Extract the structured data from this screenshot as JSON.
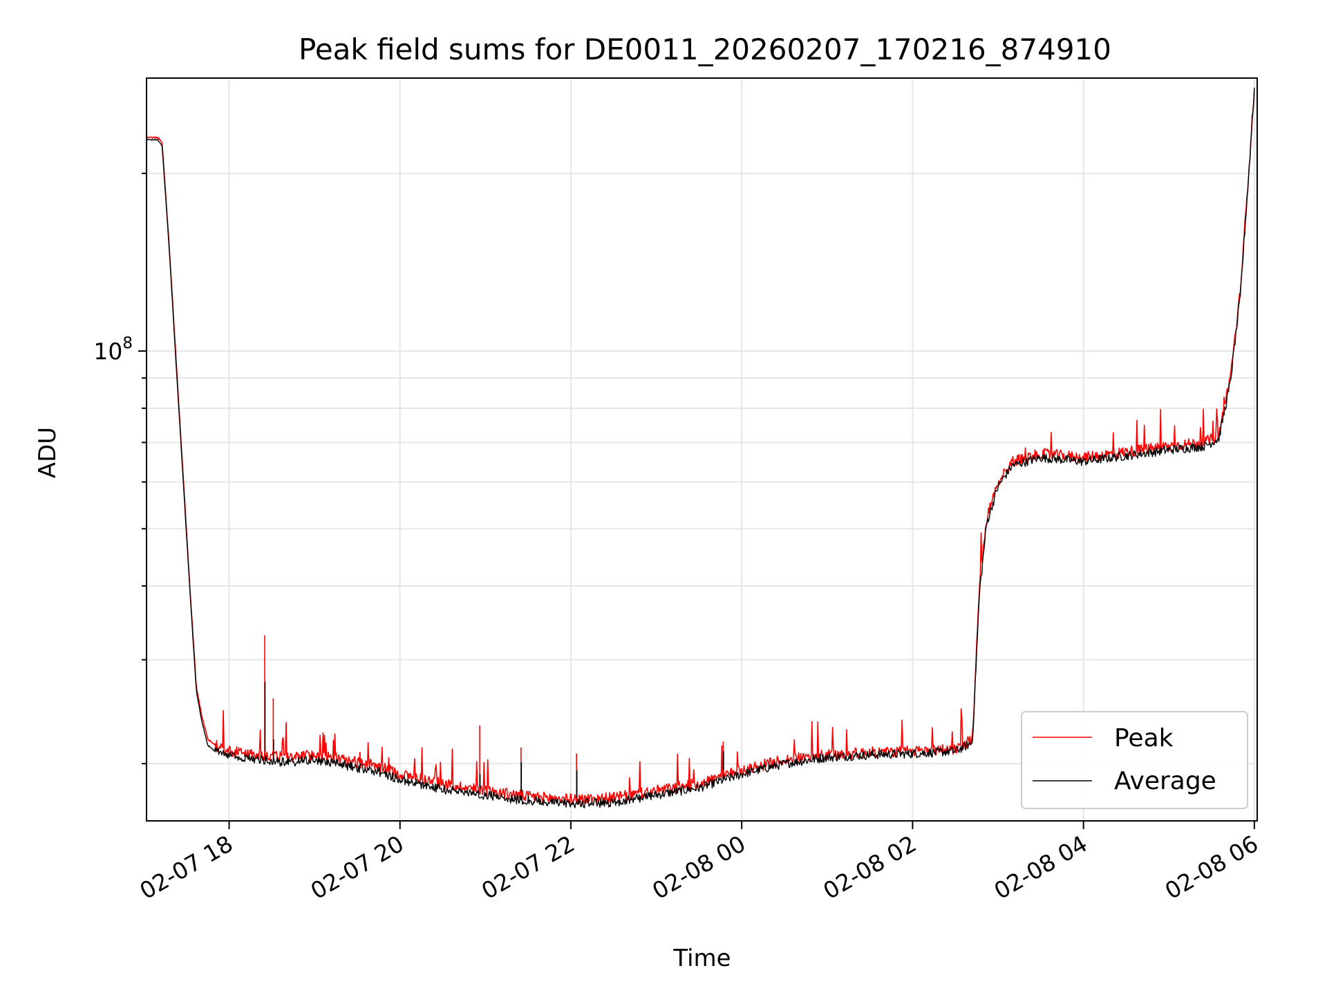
{
  "chart_data": {
    "type": "line",
    "title": "Peak field sums for DE0011_20260207_170216_874910",
    "xlabel": "Time",
    "ylabel": "ADU",
    "yscale": "log",
    "xlim": [
      "2026-02-07 17:02",
      "2026-02-08 06:02"
    ],
    "ylim": [
      16000000,
      290000000
    ],
    "x_ticks": [
      "02-07 18",
      "02-07 20",
      "02-07 22",
      "02-08 00",
      "02-08 02",
      "02-08 04",
      "02-08 06"
    ],
    "x_tick_times": [
      "2026-02-07 18:00",
      "2026-02-07 20:00",
      "2026-02-07 22:00",
      "2026-02-08 00:00",
      "2026-02-08 02:00",
      "2026-02-08 04:00",
      "2026-02-08 06:00"
    ],
    "y_major_ticks": [
      {
        "value": 100000000,
        "base": "10",
        "exponent": "8"
      }
    ],
    "y_minor_ticks": [
      20000000,
      30000000,
      40000000,
      50000000,
      60000000,
      70000000,
      80000000,
      90000000,
      200000000
    ],
    "grid": true,
    "legend_position": "lower-right",
    "series": [
      {
        "name": "Peak",
        "color": "#ff0000",
        "x": [
          "2026-02-07 17:02",
          "2026-02-07 17:10",
          "2026-02-07 17:13",
          "2026-02-07 17:18",
          "2026-02-07 17:23",
          "2026-02-07 17:28",
          "2026-02-07 17:33",
          "2026-02-07 17:37",
          "2026-02-07 17:41",
          "2026-02-07 17:45",
          "2026-02-07 17:50",
          "2026-02-07 18:00",
          "2026-02-07 18:15",
          "2026-02-07 18:30",
          "2026-02-07 18:45",
          "2026-02-07 19:00",
          "2026-02-07 19:15",
          "2026-02-07 19:30",
          "2026-02-07 19:45",
          "2026-02-07 20:00",
          "2026-02-07 20:30",
          "2026-02-07 21:00",
          "2026-02-07 21:30",
          "2026-02-07 22:00",
          "2026-02-07 22:30",
          "2026-02-07 23:00",
          "2026-02-07 23:30",
          "2026-02-08 00:00",
          "2026-02-08 00:30",
          "2026-02-08 01:00",
          "2026-02-08 01:30",
          "2026-02-08 02:00",
          "2026-02-08 02:30",
          "2026-02-08 02:42",
          "2026-02-08 02:47",
          "2026-02-08 02:52",
          "2026-02-08 03:00",
          "2026-02-08 03:10",
          "2026-02-08 03:30",
          "2026-02-08 04:00",
          "2026-02-08 04:30",
          "2026-02-08 05:00",
          "2026-02-08 05:25",
          "2026-02-08 05:35",
          "2026-02-08 05:43",
          "2026-02-08 05:50",
          "2026-02-08 05:55",
          "2026-02-08 06:00"
        ],
        "values": [
          230000000,
          230000000,
          225000000,
          150000000,
          95000000,
          60000000,
          38000000,
          27000000,
          24000000,
          22000000,
          21500000,
          21000000,
          20800000,
          20600000,
          20500000,
          20700000,
          20400000,
          20100000,
          19800000,
          19200000,
          18500000,
          18000000,
          17600000,
          17400000,
          17500000,
          18000000,
          18500000,
          19500000,
          20300000,
          20700000,
          20900000,
          21000000,
          21200000,
          22000000,
          40000000,
          52000000,
          60000000,
          65000000,
          67000000,
          66000000,
          67500000,
          69000000,
          70000000,
          72000000,
          90000000,
          125000000,
          185000000,
          280000000
        ]
      },
      {
        "name": "Average",
        "color": "#000000",
        "x": [
          "2026-02-07 17:02",
          "2026-02-07 17:10",
          "2026-02-07 17:13",
          "2026-02-07 17:18",
          "2026-02-07 17:23",
          "2026-02-07 17:28",
          "2026-02-07 17:33",
          "2026-02-07 17:37",
          "2026-02-07 17:41",
          "2026-02-07 17:45",
          "2026-02-07 17:50",
          "2026-02-07 18:00",
          "2026-02-07 18:15",
          "2026-02-07 18:30",
          "2026-02-07 18:45",
          "2026-02-07 19:00",
          "2026-02-07 19:15",
          "2026-02-07 19:30",
          "2026-02-07 19:45",
          "2026-02-07 20:00",
          "2026-02-07 20:30",
          "2026-02-07 21:00",
          "2026-02-07 21:30",
          "2026-02-07 22:00",
          "2026-02-07 22:30",
          "2026-02-07 23:00",
          "2026-02-07 23:30",
          "2026-02-08 00:00",
          "2026-02-08 00:30",
          "2026-02-08 01:00",
          "2026-02-08 01:30",
          "2026-02-08 02:00",
          "2026-02-08 02:30",
          "2026-02-08 02:42",
          "2026-02-08 02:47",
          "2026-02-08 02:52",
          "2026-02-08 03:00",
          "2026-02-08 03:10",
          "2026-02-08 03:30",
          "2026-02-08 04:00",
          "2026-02-08 04:30",
          "2026-02-08 05:00",
          "2026-02-08 05:25",
          "2026-02-08 05:35",
          "2026-02-08 05:43",
          "2026-02-08 05:50",
          "2026-02-08 05:55",
          "2026-02-08 06:00"
        ],
        "values": [
          228000000,
          228000000,
          222000000,
          148000000,
          93000000,
          59000000,
          37500000,
          26500000,
          23500000,
          21500000,
          21000000,
          20600000,
          20400000,
          20200000,
          20100000,
          20300000,
          20000000,
          19700000,
          19400000,
          18800000,
          18100000,
          17700000,
          17300000,
          17100000,
          17200000,
          17700000,
          18200000,
          19200000,
          20000000,
          20500000,
          20700000,
          20800000,
          21000000,
          21700000,
          39000000,
          51000000,
          59000000,
          64000000,
          66000000,
          65000000,
          66500000,
          68000000,
          69000000,
          71000000,
          88000000,
          123000000,
          183000000,
          278000000
        ]
      }
    ],
    "spikes": [
      {
        "x": "2026-02-07 18:25",
        "peak": 33000000,
        "average": 27500000
      },
      {
        "x": "2026-02-07 18:31",
        "peak": 25800000,
        "average": 22000000
      },
      {
        "x": "2026-02-07 20:56",
        "peak": 23200000,
        "average": 19200000
      },
      {
        "x": "2026-02-07 21:25",
        "peak": 21300000,
        "average": 20100000
      },
      {
        "x": "2026-02-07 22:04",
        "peak": 20800000,
        "average": 19500000
      },
      {
        "x": "2026-02-07 23:47",
        "peak": 21800000,
        "average": 21000000
      }
    ]
  }
}
